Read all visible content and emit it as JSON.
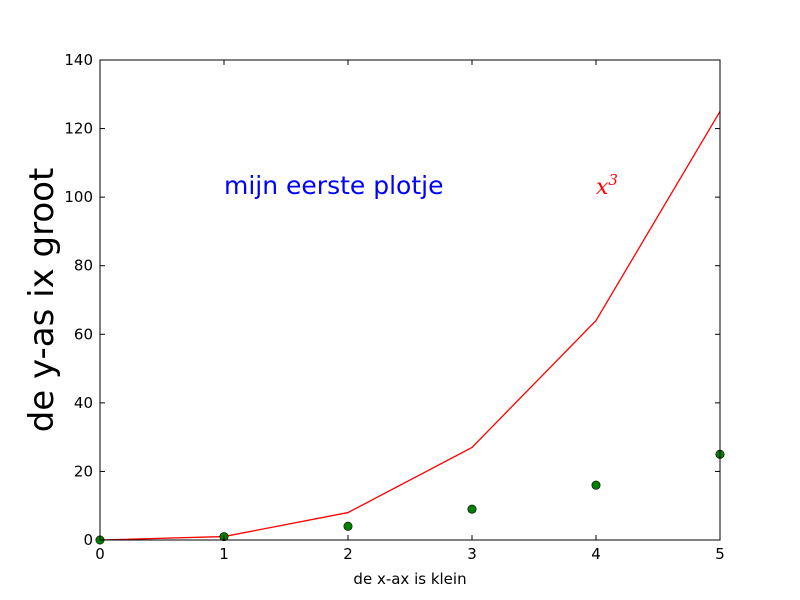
{
  "chart_data": {
    "type": "line",
    "xlabel": "de x-ax is klein",
    "ylabel": "de y-as ix groot",
    "xlim": [
      0,
      5
    ],
    "ylim": [
      0,
      140
    ],
    "xticks": [
      0,
      1,
      2,
      3,
      4,
      5
    ],
    "yticks": [
      0,
      20,
      40,
      60,
      80,
      100,
      120,
      140
    ],
    "grid": false,
    "series": [
      {
        "kind": "line",
        "color": "#ff0000",
        "x": [
          0,
          1,
          2,
          3,
          4,
          5
        ],
        "y": [
          0,
          1,
          8,
          27,
          64,
          125
        ]
      },
      {
        "kind": "scatter",
        "color": "#008000",
        "x": [
          0,
          1,
          2,
          3,
          4,
          5
        ],
        "y": [
          0,
          1,
          4,
          9,
          16,
          25
        ]
      }
    ],
    "annotations": [
      {
        "text": "mijn eerste plotje",
        "x": 1,
        "y": 100,
        "color": "#0000ff"
      },
      {
        "text": "x",
        "superscript": "3",
        "x": 4,
        "y": 100,
        "color": "#ff0000"
      }
    ]
  }
}
